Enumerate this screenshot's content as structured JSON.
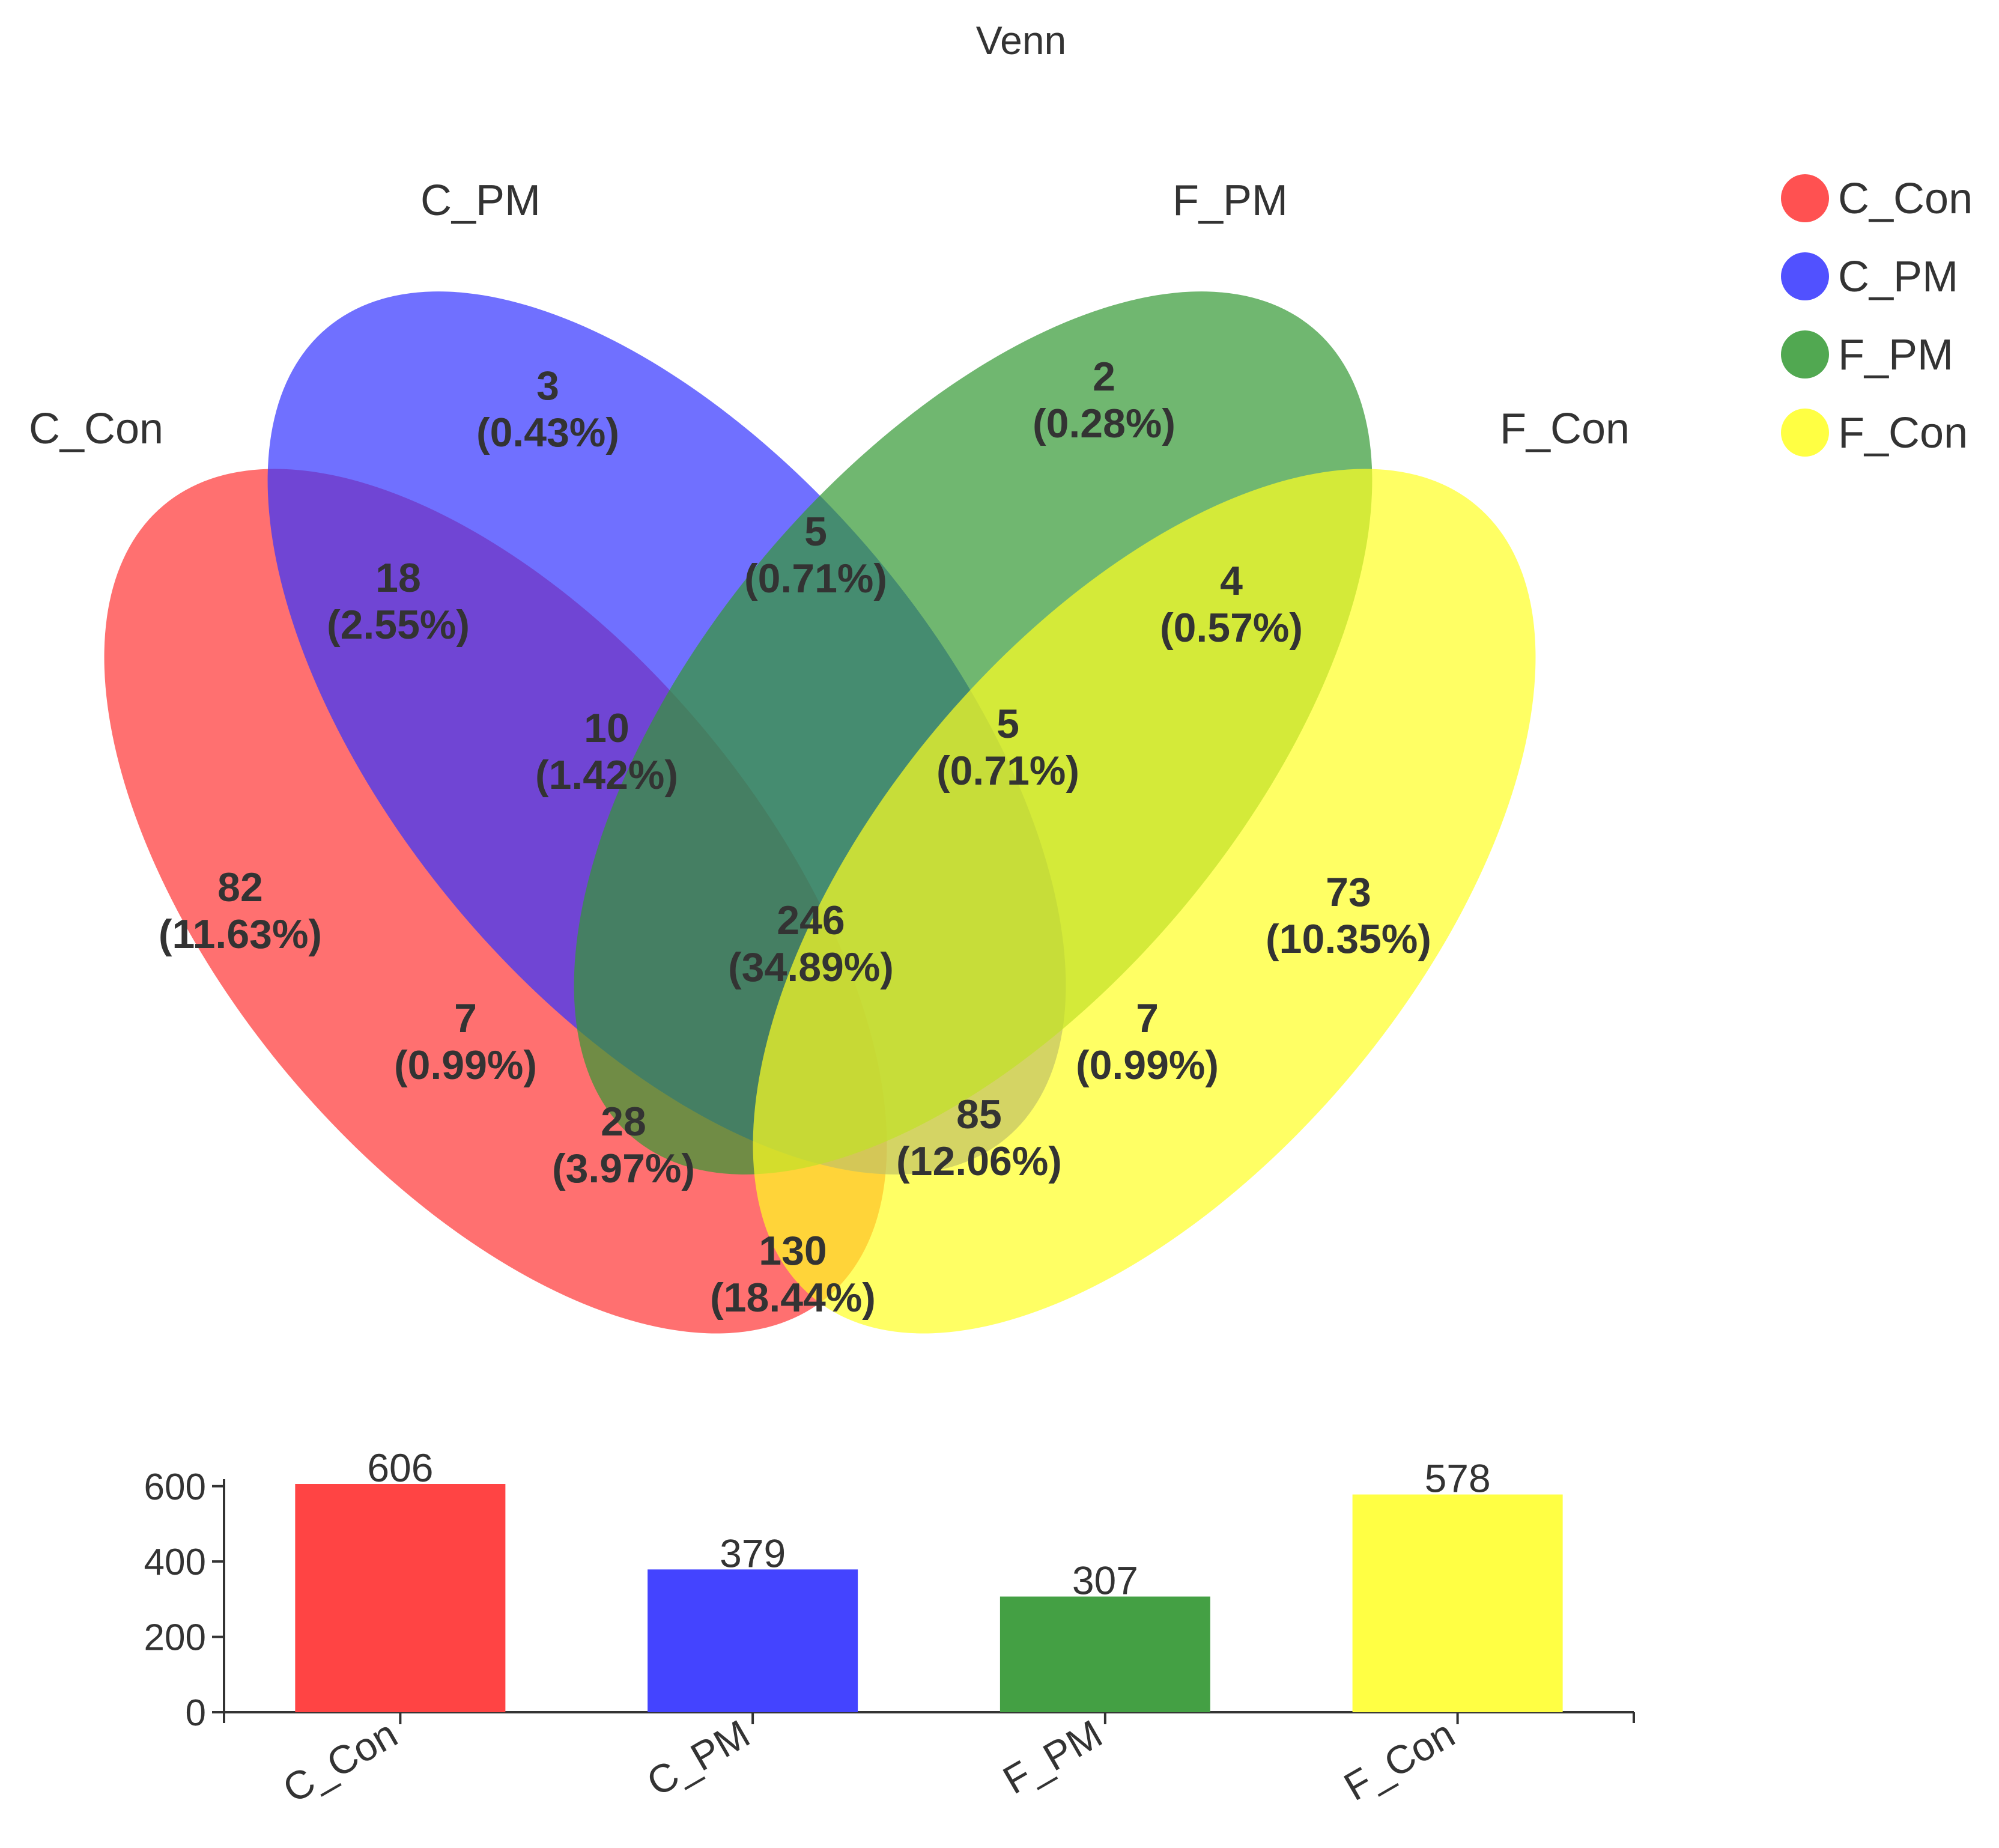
{
  "chart_data": [
    {
      "type": "venn",
      "title": "Venn",
      "sets": [
        {
          "name": "C_Con",
          "color": "#ff3333"
        },
        {
          "name": "C_PM",
          "color": "#3333ff"
        },
        {
          "name": "F_PM",
          "color": "#339933"
        },
        {
          "name": "F_Con",
          "color": "#ffff22"
        }
      ],
      "legend": {
        "position": "top-right",
        "entries": [
          "C_Con",
          "C_PM",
          "F_PM",
          "F_Con"
        ]
      },
      "regions": [
        {
          "sets": [
            "C_PM"
          ],
          "count": "3",
          "percent": "(0.43%)"
        },
        {
          "sets": [
            "F_PM"
          ],
          "count": "2",
          "percent": "(0.28%)"
        },
        {
          "sets": [
            "C_Con",
            "C_PM"
          ],
          "count": "18",
          "percent": "(2.55%)"
        },
        {
          "sets": [
            "C_PM",
            "F_PM"
          ],
          "count": "5",
          "percent": "(0.71%)"
        },
        {
          "sets": [
            "F_PM",
            "F_Con"
          ],
          "count": "4",
          "percent": "(0.57%)"
        },
        {
          "sets": [
            "C_Con",
            "C_PM",
            "F_PM"
          ],
          "count": "10",
          "percent": "(1.42%)"
        },
        {
          "sets": [
            "C_PM",
            "F_PM",
            "F_Con"
          ],
          "count": "5",
          "percent": "(0.71%)"
        },
        {
          "sets": [
            "C_Con"
          ],
          "count": "82",
          "percent": "(11.63%)"
        },
        {
          "sets": [
            "C_Con",
            "C_PM",
            "F_PM",
            "F_Con"
          ],
          "count": "246",
          "percent": "(34.89%)"
        },
        {
          "sets": [
            "F_Con"
          ],
          "count": "73",
          "percent": "(10.35%)"
        },
        {
          "sets": [
            "C_Con",
            "F_PM"
          ],
          "count": "7",
          "percent": "(0.99%)"
        },
        {
          "sets": [
            "C_PM",
            "F_Con"
          ],
          "count": "7",
          "percent": "(0.99%)"
        },
        {
          "sets": [
            "C_Con",
            "F_PM",
            "F_Con"
          ],
          "count": "28",
          "percent": "(3.97%)"
        },
        {
          "sets": [
            "C_Con",
            "C_PM",
            "F_Con"
          ],
          "count": "85",
          "percent": "(12.06%)"
        },
        {
          "sets": [
            "C_Con",
            "F_Con"
          ],
          "count": "130",
          "percent": "(18.44%)"
        }
      ]
    },
    {
      "type": "bar",
      "categories": [
        "C_Con",
        "C_PM",
        "F_PM",
        "F_Con"
      ],
      "values": [
        606,
        379,
        307,
        578
      ],
      "colors": [
        "#ff4444",
        "#4444ff",
        "#44a044",
        "#ffff44"
      ],
      "yticks": [
        0,
        200,
        400,
        600
      ],
      "ylim": [
        0,
        606
      ],
      "grid": false,
      "xlabel": "",
      "ylabel": ""
    }
  ]
}
